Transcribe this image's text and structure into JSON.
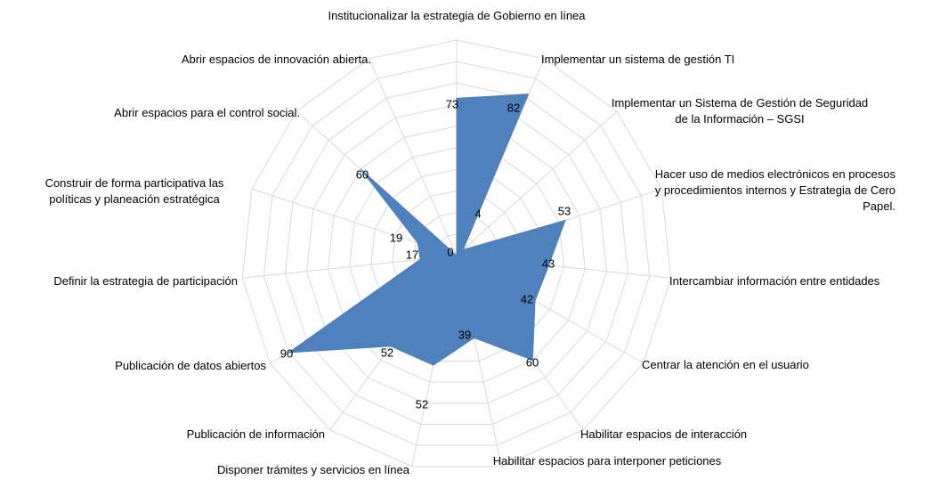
{
  "chart_data": {
    "type": "radar",
    "categories": [
      "Institucionalizar la estrategia de Gobierno en línea",
      "Implementar un sistema de gestión TI",
      "Implementar un Sistema de Gestión de Seguridad de la Información – SGSI",
      "Hacer uso de medios electrónicos en procesos y procedimientos internos y Estrategia de Cero Papel.",
      "Intercambiar información entre entidades",
      "Centrar la atención en el usuario",
      "Habilitar espacios de interacción",
      "Habilitar espacios para interponer peticiones",
      "Disponer trámites y servicios en línea",
      "Publicación de información",
      "Publicación de datos abiertos",
      "Definir la estrategia de participación",
      "Construir de forma participativa las políticas y planeación estratégica",
      "Abrir espacios para el control social.",
      "Abrir espacios de innovación abierta."
    ],
    "values": [
      73,
      82,
      4,
      53,
      43,
      42,
      60,
      39,
      52,
      52,
      90,
      17,
      19,
      60,
      0
    ],
    "color": "#4f81bd",
    "ylim": [
      0,
      100
    ],
    "yticks": [
      0,
      10,
      20,
      30,
      40,
      50,
      60,
      70,
      80,
      90,
      100
    ],
    "grid": true
  }
}
